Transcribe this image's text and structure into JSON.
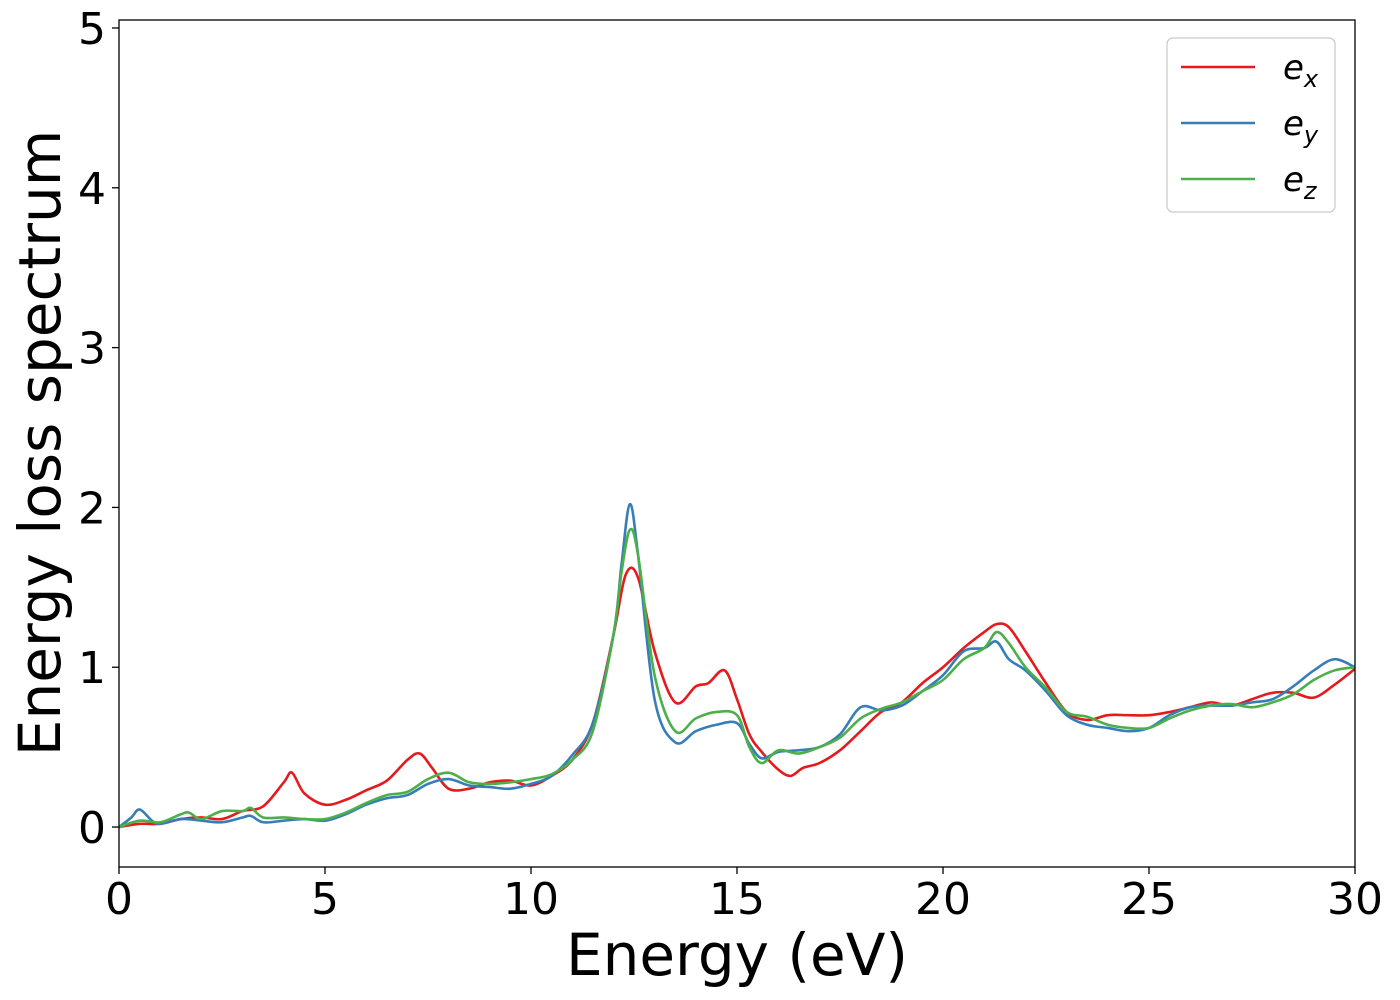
{
  "chart_data": {
    "type": "line",
    "title": "",
    "xlabel": "Energy (eV)",
    "ylabel": "Energy loss spectrum",
    "xlim": [
      0,
      30
    ],
    "ylim": [
      -0.25,
      5.05
    ],
    "xticks": [
      0,
      5,
      10,
      15,
      20,
      25,
      30
    ],
    "xtick_labels": [
      "0",
      "5",
      "10",
      "15",
      "20",
      "25",
      "30"
    ],
    "yticks": [
      0,
      1,
      2,
      3,
      4,
      5
    ],
    "ytick_labels": [
      "0",
      "1",
      "2",
      "3",
      "4",
      "5"
    ],
    "grid": false,
    "legend_position": "top-right",
    "series": [
      {
        "name": "e_x",
        "label_main": "e",
        "label_sub": "x",
        "color": "#e41a1c",
        "x": [
          0,
          0.5,
          1,
          1.5,
          2,
          2.5,
          3,
          3.5,
          4,
          4.2,
          4.5,
          5,
          5.5,
          6,
          6.5,
          7,
          7.3,
          7.6,
          8,
          8.5,
          9,
          9.5,
          10,
          10.5,
          11,
          11.5,
          12,
          12.3,
          12.6,
          13,
          13.5,
          14,
          14.3,
          14.7,
          15,
          15.3,
          15.6,
          16,
          16.3,
          16.6,
          17,
          17.5,
          18,
          18.5,
          19,
          19.5,
          20,
          20.5,
          21,
          21.3,
          21.6,
          22,
          22.5,
          23,
          23.5,
          24,
          24.5,
          25,
          25.5,
          26,
          26.5,
          27,
          27.5,
          28,
          28.5,
          29,
          29.5,
          30
        ],
        "y": [
          0,
          0.02,
          0.02,
          0.05,
          0.06,
          0.05,
          0.1,
          0.13,
          0.28,
          0.34,
          0.21,
          0.14,
          0.17,
          0.23,
          0.29,
          0.42,
          0.46,
          0.37,
          0.24,
          0.24,
          0.28,
          0.29,
          0.26,
          0.32,
          0.42,
          0.65,
          1.2,
          1.58,
          1.56,
          1.1,
          0.78,
          0.88,
          0.9,
          0.98,
          0.8,
          0.58,
          0.47,
          0.36,
          0.32,
          0.37,
          0.4,
          0.48,
          0.6,
          0.72,
          0.78,
          0.9,
          1.0,
          1.12,
          1.22,
          1.27,
          1.25,
          1.1,
          0.9,
          0.72,
          0.67,
          0.7,
          0.7,
          0.7,
          0.72,
          0.75,
          0.78,
          0.76,
          0.8,
          0.84,
          0.84,
          0.81,
          0.89,
          0.99
        ]
      },
      {
        "name": "e_y",
        "label_main": "e",
        "label_sub": "y",
        "color": "#377eb8",
        "x": [
          0,
          0.3,
          0.5,
          0.8,
          1,
          1.5,
          2,
          2.5,
          3,
          3.2,
          3.5,
          4,
          4.5,
          5,
          5.5,
          6,
          6.5,
          7,
          7.5,
          8,
          8.5,
          9,
          9.5,
          10,
          10.5,
          11,
          11.5,
          12,
          12.2,
          12.4,
          12.6,
          13,
          13.5,
          14,
          14.5,
          15,
          15.3,
          15.6,
          16,
          16.5,
          17,
          17.5,
          18,
          18.5,
          19,
          19.5,
          20,
          20.5,
          21,
          21.3,
          21.6,
          22,
          22.5,
          23,
          23.5,
          24,
          24.5,
          25,
          25.5,
          26,
          26.5,
          27,
          27.5,
          28,
          28.5,
          29,
          29.5,
          30
        ],
        "y": [
          0,
          0.06,
          0.11,
          0.04,
          0.02,
          0.05,
          0.04,
          0.03,
          0.06,
          0.07,
          0.03,
          0.04,
          0.05,
          0.04,
          0.08,
          0.14,
          0.18,
          0.2,
          0.27,
          0.3,
          0.26,
          0.25,
          0.24,
          0.27,
          0.32,
          0.45,
          0.65,
          1.2,
          1.65,
          2.02,
          1.7,
          0.8,
          0.53,
          0.6,
          0.64,
          0.65,
          0.52,
          0.43,
          0.47,
          0.48,
          0.5,
          0.58,
          0.75,
          0.73,
          0.76,
          0.85,
          0.95,
          1.1,
          1.12,
          1.16,
          1.05,
          0.98,
          0.85,
          0.7,
          0.64,
          0.62,
          0.6,
          0.62,
          0.7,
          0.75,
          0.76,
          0.76,
          0.78,
          0.8,
          0.88,
          0.98,
          1.05,
          1.0
        ]
      },
      {
        "name": "e_z",
        "label_main": "e",
        "label_sub": "z",
        "color": "#4daf4a",
        "x": [
          0,
          0.5,
          1,
          1.5,
          1.7,
          2,
          2.5,
          3,
          3.2,
          3.5,
          4,
          4.5,
          5,
          5.5,
          6,
          6.5,
          7,
          7.5,
          8,
          8.5,
          9,
          9.5,
          10,
          10.5,
          11,
          11.5,
          12,
          12.2,
          12.4,
          12.6,
          13,
          13.5,
          14,
          14.5,
          15,
          15.3,
          15.6,
          16,
          16.5,
          17,
          17.5,
          18,
          18.5,
          19,
          19.5,
          20,
          20.5,
          21,
          21.3,
          21.6,
          22,
          22.5,
          23,
          23.5,
          24,
          24.5,
          25,
          25.5,
          26,
          26.5,
          27,
          27.5,
          28,
          28.5,
          29,
          29.5,
          30
        ],
        "y": [
          0,
          0.04,
          0.03,
          0.08,
          0.09,
          0.05,
          0.1,
          0.1,
          0.12,
          0.06,
          0.06,
          0.05,
          0.05,
          0.09,
          0.15,
          0.2,
          0.22,
          0.3,
          0.34,
          0.28,
          0.27,
          0.28,
          0.3,
          0.33,
          0.42,
          0.6,
          1.2,
          1.6,
          1.86,
          1.7,
          0.95,
          0.6,
          0.68,
          0.72,
          0.7,
          0.5,
          0.4,
          0.48,
          0.46,
          0.5,
          0.56,
          0.68,
          0.74,
          0.78,
          0.85,
          0.92,
          1.05,
          1.12,
          1.22,
          1.15,
          1.0,
          0.87,
          0.72,
          0.69,
          0.64,
          0.62,
          0.62,
          0.68,
          0.73,
          0.76,
          0.77,
          0.75,
          0.78,
          0.83,
          0.92,
          0.98,
          1.0
        ]
      }
    ]
  }
}
